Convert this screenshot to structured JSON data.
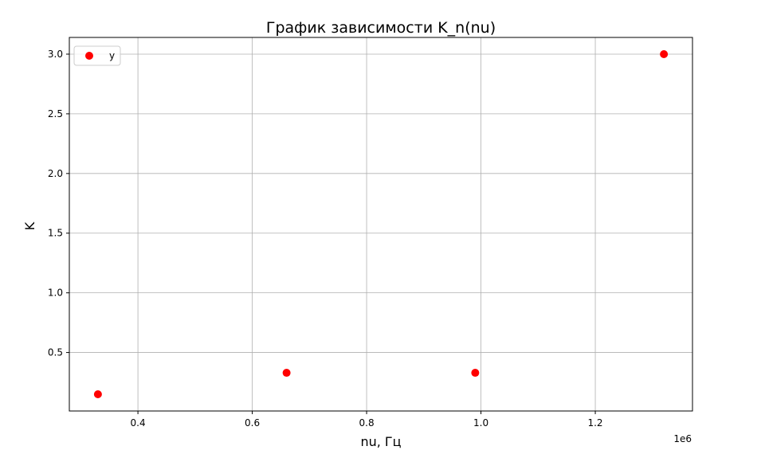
{
  "chart_data": {
    "type": "scatter",
    "title": "График зависимости K_n(nu)",
    "xlabel": "nu, Гц",
    "ylabel": "K",
    "x_offset_label": "1e6",
    "xlim": [
      0.28,
      1.37
    ],
    "ylim": [
      0.01,
      3.14
    ],
    "x_ticks": [
      0.4,
      0.6,
      0.8,
      1.0,
      1.2
    ],
    "x_tick_labels": [
      "0.4",
      "0.6",
      "0.8",
      "1.0",
      "1.2"
    ],
    "y_ticks": [
      0.5,
      1.0,
      1.5,
      2.0,
      2.5,
      3.0
    ],
    "y_tick_labels": [
      "0.5",
      "1.0",
      "1.5",
      "2.0",
      "2.5",
      "3.0"
    ],
    "grid": true,
    "legend_position": "top-left",
    "series": [
      {
        "name": "y",
        "color": "#ff0000",
        "marker": "circle",
        "x": [
          0.33,
          0.66,
          0.99,
          1.32
        ],
        "y": [
          0.15,
          0.33,
          0.33,
          3.0
        ]
      }
    ]
  }
}
